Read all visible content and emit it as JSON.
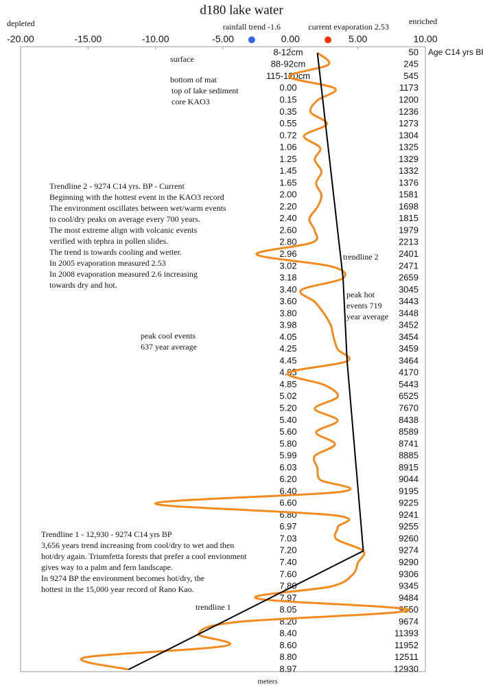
{
  "chart_data": {
    "type": "line",
    "title": "d180 lake water",
    "left_label": "depleted",
    "right_label": "enriched",
    "right_header": "Age C14 yrs BP",
    "y_label": "meters",
    "xlim": [
      -20,
      10
    ],
    "xticks": [
      {
        "value": -20,
        "label": "-20.00"
      },
      {
        "value": -15,
        "label": "-15.00"
      },
      {
        "value": -10,
        "label": "-10.00"
      },
      {
        "value": -5,
        "label": "-5.00"
      },
      {
        "value": 0,
        "label": "0.00"
      },
      {
        "value": 5,
        "label": "5.00"
      },
      {
        "value": 10,
        "label": "10.00"
      }
    ],
    "categories": [
      "8-12cm",
      "88-92cm",
      "115-120cm",
      "0.00",
      "0.15",
      "0.35",
      "0.55",
      "0.72",
      "1.06",
      "1.25",
      "1.45",
      "1.65",
      "2.00",
      "2.20",
      "2.40",
      "2.60",
      "2.80",
      "2.96",
      "3.02",
      "3.18",
      "3.40",
      "3.60",
      "3.80",
      "3.98",
      "4.05",
      "4.25",
      "4.45",
      "4.65",
      "4.85",
      "5.02",
      "5.20",
      "5.40",
      "5.60",
      "5.80",
      "5.99",
      "6.03",
      "6.20",
      "6.40",
      "6.60",
      "6.80",
      "6.97",
      "7.03",
      "7.20",
      "7.40",
      "7.60",
      "7.80",
      "7.97",
      "8.05",
      "8.20",
      "8.40",
      "8.60",
      "8.80",
      "8.97"
    ],
    "ages": [
      50,
      245,
      545,
      1173,
      1200,
      1236,
      1273,
      1304,
      1325,
      1329,
      1332,
      1376,
      1581,
      1698,
      1815,
      1979,
      2213,
      2401,
      2471,
      2659,
      3045,
      3443,
      3448,
      3452,
      3454,
      3459,
      3464,
      4170,
      5443,
      6525,
      7670,
      8438,
      8589,
      8741,
      8885,
      8915,
      9044,
      9195,
      9225,
      9241,
      9255,
      9260,
      9274,
      9290,
      9306,
      9345,
      9484,
      9550,
      9674,
      11393,
      11952,
      12511,
      12930
    ],
    "series": [
      {
        "color": "#f28a1e",
        "values": [
          2.0,
          2.8,
          -0.1,
          3.3,
          2.0,
          1.5,
          2.7,
          1.0,
          2.2,
          1.8,
          2.3,
          1.9,
          2.3,
          2.0,
          1.4,
          1.8,
          1.6,
          -2.5,
          3.0,
          3.9,
          0.8,
          1.8,
          2.5,
          3.0,
          3.2,
          3.5,
          4.2,
          -0.2,
          2.5,
          3.5,
          1.8,
          3.5,
          1.9,
          3.3,
          1.8,
          2.0,
          2.2,
          3.8,
          -10.0,
          3.3,
          3.5,
          3.4,
          5.4,
          5.0,
          4.6,
          3.0,
          -2.5,
          8.8,
          -4.0,
          -6.8,
          -4.8,
          -15.3,
          -12.0
        ]
      }
    ],
    "trendlines": [
      {
        "x": [
          2.0,
          3.9,
          4.2,
          5.4
        ],
        "at": [
          "8-12cm",
          "3.18",
          "4.45",
          "7.20"
        ]
      },
      {
        "x": [
          5.4,
          -12.0
        ],
        "at": [
          "7.20",
          "8.97"
        ]
      }
    ],
    "markers": [
      {
        "label": "rainfall trend -1.6",
        "value": -1.6,
        "color": "#3366ee"
      },
      {
        "label": "current evaporation 2.53",
        "value": 2.53,
        "color": "#ff3300"
      }
    ],
    "annotations": [
      {
        "lines": [
          "surface"
        ],
        "x": 248,
        "y": 87
      },
      {
        "lines": [
          "bottom of mat"
        ],
        "x": 248,
        "y": 117
      },
      {
        "lines": [
          "top of lake sediment",
          "core KAO3"
        ],
        "x": 250,
        "y": 133
      },
      {
        "lines": [
          "Trendline 2 - 9274 C14 yrs. BP - Current",
          "Beginning with the hottest event in the KAO3 record",
          "The environment oscillates between wet/warm events",
          "to cool/dry peaks on average every 700 years.",
          "The most extreme align with volcanic events",
          "verified with tephra in pollen slides.",
          "The trend is towards cooling and wetter.",
          "In 2005 evaporation measured 2.53",
          "In 2008 evaporation measured 2.6 increasing",
          "towards dry and hot."
        ],
        "x": 72,
        "y": 272
      },
      {
        "lines": [
          "trendline 2"
        ],
        "x": 500,
        "y": 375
      },
      {
        "lines": [
          "peak hot",
          "events 719",
          "year average"
        ],
        "x": 505,
        "y": 430
      },
      {
        "lines": [
          "peak cool events",
          "637 year average"
        ],
        "x": 205,
        "y": 490
      },
      {
        "lines": [
          "Trendline 1 - 12,930 - 9274 C14 yrs BP",
          "3,656 years trend increasing from cool/dry to wet and then",
          "hot/dry again. Triumfetta forests that prefer a cool envionment",
          "gives way to a palm and fern landscape.",
          "In 9274 BP the environment becomes hot/dry, the",
          "hottest in the 15,000 year record of Rano Kao."
        ],
        "x": 60,
        "y": 779
      },
      {
        "lines": [
          "trendline 1"
        ],
        "x": 285,
        "y": 885
      }
    ]
  }
}
